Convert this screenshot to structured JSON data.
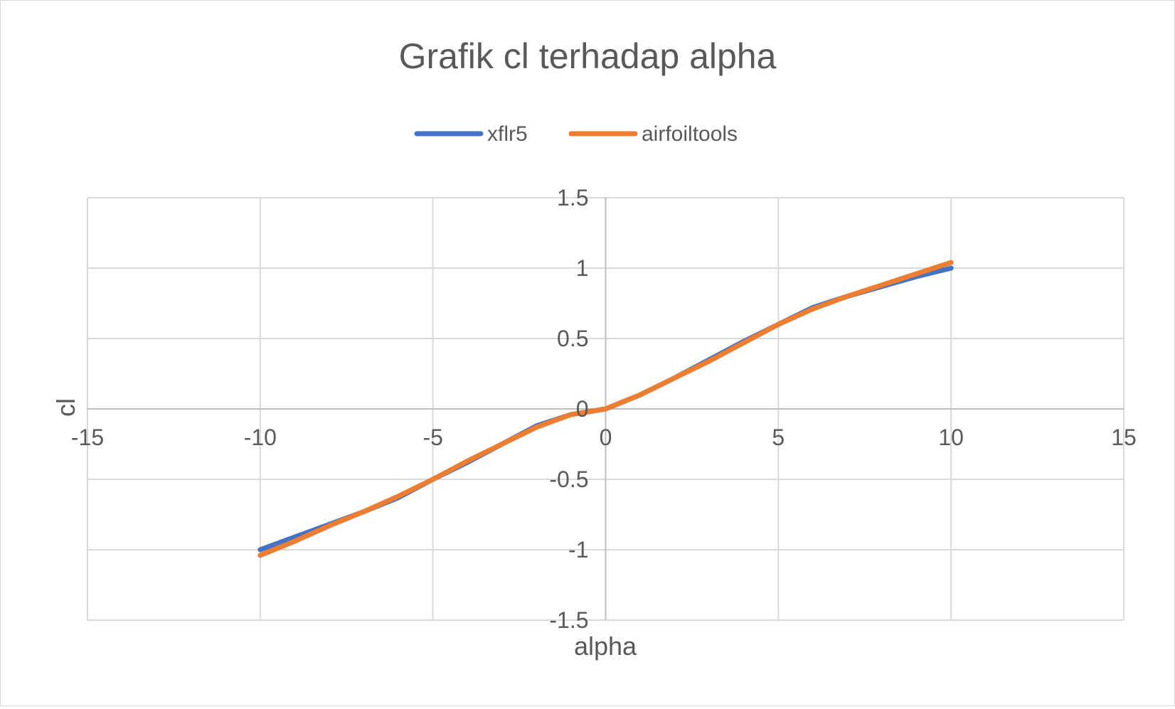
{
  "chart_data": {
    "type": "scatter",
    "title": "Grafik cl terhadap alpha",
    "xlabel": "alpha",
    "ylabel": "cl",
    "xlim": [
      -15,
      15
    ],
    "ylim": [
      -1.5,
      1.5
    ],
    "xticks": [
      -15,
      -10,
      -5,
      0,
      5,
      10,
      15
    ],
    "yticks": [
      -1.5,
      -1,
      -0.5,
      0,
      0.5,
      1,
      1.5
    ],
    "xtick_labels": [
      "-15",
      "-10",
      "-5",
      "0",
      "5",
      "10",
      "15"
    ],
    "ytick_labels": [
      "-1.5",
      "-1",
      "-0.5",
      "0",
      "0.5",
      "1",
      "1.5"
    ],
    "grid": true,
    "legend_position": "top",
    "series": [
      {
        "name": "xflr5",
        "color": "#4472C4",
        "x": [
          -10,
          -9,
          -8,
          -7,
          -6,
          -5,
          -4,
          -3,
          -2,
          -1,
          0,
          1,
          2,
          3,
          4,
          5,
          6,
          7,
          8,
          9,
          10
        ],
        "y": [
          -1.0,
          -0.91,
          -0.82,
          -0.73,
          -0.63,
          -0.5,
          -0.38,
          -0.25,
          -0.12,
          -0.04,
          0.0,
          0.1,
          0.22,
          0.35,
          0.48,
          0.6,
          0.72,
          0.8,
          0.87,
          0.94,
          1.0
        ]
      },
      {
        "name": "airfoiltools",
        "color": "#ED7D31",
        "x": [
          -10,
          -9,
          -8,
          -7,
          -6,
          -5,
          -4,
          -3,
          -2,
          -1,
          0,
          1,
          2,
          3,
          4,
          5,
          6,
          7,
          8,
          9,
          10
        ],
        "y": [
          -1.04,
          -0.94,
          -0.83,
          -0.73,
          -0.62,
          -0.5,
          -0.37,
          -0.25,
          -0.13,
          -0.04,
          0.0,
          0.1,
          0.22,
          0.34,
          0.47,
          0.6,
          0.71,
          0.8,
          0.88,
          0.96,
          1.04
        ]
      }
    ]
  }
}
